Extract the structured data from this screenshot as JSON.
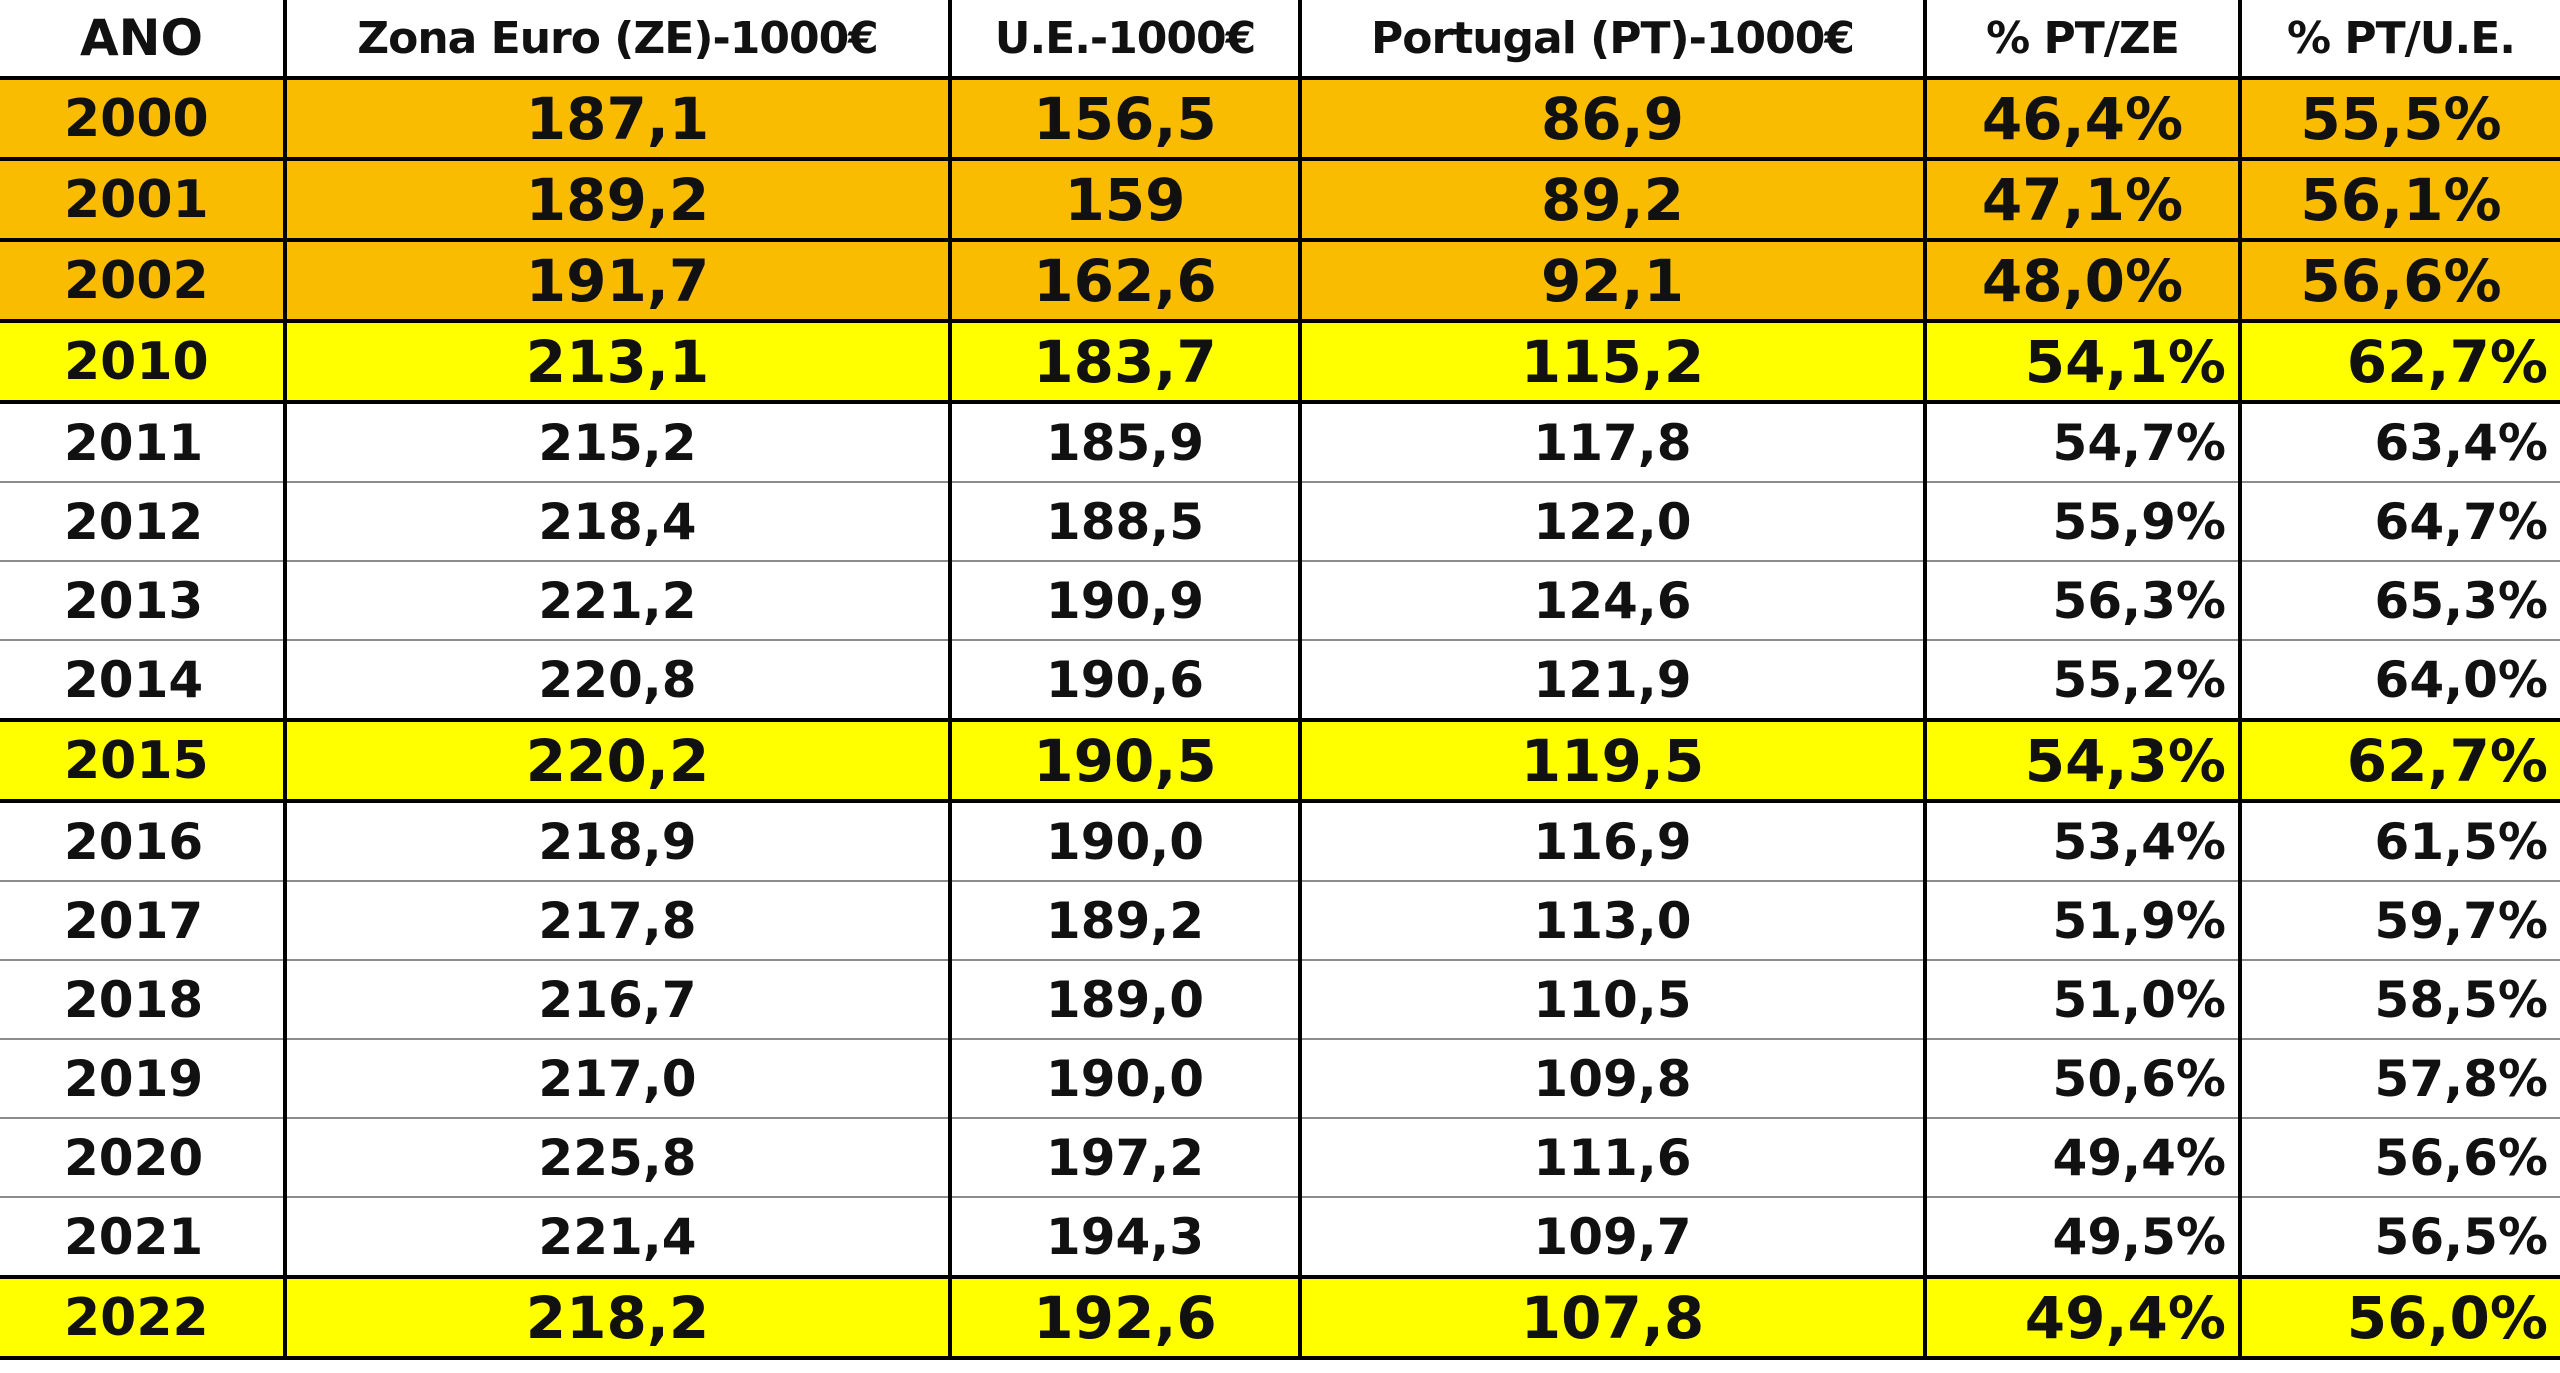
{
  "table": {
    "headers": [
      "ANO",
      "Zona Euro (ZE)-1000€",
      "U.E.-1000€",
      "Portugal (PT)-1000€",
      "% PT/ZE",
      "% PT/U.E."
    ],
    "rows": [
      {
        "highlight": "orange",
        "cells": [
          "2000",
          "187,1",
          "156,5",
          "86,9",
          "46,4%",
          "55,5%"
        ]
      },
      {
        "highlight": "orange",
        "cells": [
          "2001",
          "189,2",
          "159",
          "89,2",
          "47,1%",
          "56,1%"
        ]
      },
      {
        "highlight": "orange",
        "cells": [
          "2002",
          "191,7",
          "162,6",
          "92,1",
          "48,0%",
          "56,6%"
        ]
      },
      {
        "highlight": "yellow",
        "cells": [
          "2010",
          "213,1",
          "183,7",
          "115,2",
          "54,1%",
          "62,7%"
        ]
      },
      {
        "highlight": "none",
        "cells": [
          "2011",
          "215,2",
          "185,9",
          "117,8",
          "54,7%",
          "63,4%"
        ]
      },
      {
        "highlight": "none",
        "cells": [
          "2012",
          "218,4",
          "188,5",
          "122,0",
          "55,9%",
          "64,7%"
        ]
      },
      {
        "highlight": "none",
        "cells": [
          "2013",
          "221,2",
          "190,9",
          "124,6",
          "56,3%",
          "65,3%"
        ]
      },
      {
        "highlight": "none",
        "cells": [
          "2014",
          "220,8",
          "190,6",
          "121,9",
          "55,2%",
          "64,0%"
        ]
      },
      {
        "highlight": "yellow",
        "cells": [
          "2015",
          "220,2",
          "190,5",
          "119,5",
          "54,3%",
          "62,7%"
        ]
      },
      {
        "highlight": "none",
        "cells": [
          "2016",
          "218,9",
          "190,0",
          "116,9",
          "53,4%",
          "61,5%"
        ]
      },
      {
        "highlight": "none",
        "cells": [
          "2017",
          "217,8",
          "189,2",
          "113,0",
          "51,9%",
          "59,7%"
        ]
      },
      {
        "highlight": "none",
        "cells": [
          "2018",
          "216,7",
          "189,0",
          "110,5",
          "51,0%",
          "58,5%"
        ]
      },
      {
        "highlight": "none",
        "cells": [
          "2019",
          "217,0",
          "190,0",
          "109,8",
          "50,6%",
          "57,8%"
        ]
      },
      {
        "highlight": "none",
        "cells": [
          "2020",
          "225,8",
          "197,2",
          "111,6",
          "49,4%",
          "56,6%"
        ]
      },
      {
        "highlight": "none",
        "cells": [
          "2021",
          "221,4",
          "194,3",
          "109,7",
          "49,5%",
          "56,5%"
        ]
      },
      {
        "highlight": "yellow",
        "cells": [
          "2022",
          "218,2",
          "192,6",
          "107,8",
          "49,4%",
          "56,0%"
        ]
      }
    ]
  },
  "colors": {
    "orange_highlight": "#f9bc00",
    "yellow_highlight": "#ffff00",
    "border": "#000000"
  }
}
